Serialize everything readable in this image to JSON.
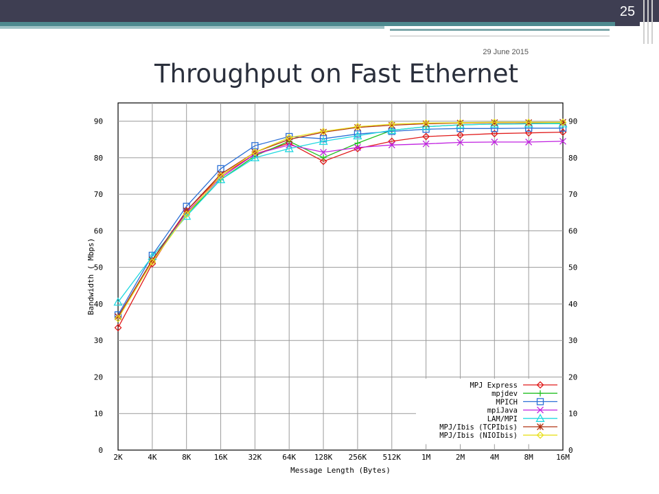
{
  "slide": {
    "page_number": "25",
    "date": "29 June 2015",
    "title": "Throughput on Fast Ethernet"
  },
  "chart_data": {
    "type": "line",
    "title": "",
    "xlabel": "Message Length (Bytes)",
    "ylabel": "Bandwidth ( Mbps)",
    "categories": [
      "2K",
      "4K",
      "8K",
      "16K",
      "32K",
      "64K",
      "128K",
      "256K",
      "512K",
      "1M",
      "2M",
      "4M",
      "8M",
      "16M"
    ],
    "ylim": [
      0,
      95
    ],
    "yticks": [
      0,
      10,
      20,
      30,
      40,
      50,
      60,
      70,
      80,
      90
    ],
    "grid": true,
    "legend_position": "bottom-right",
    "series": [
      {
        "name": "MPJ Express",
        "color": "#e01818",
        "marker": "diamond",
        "values": [
          33.5,
          51,
          65.5,
          75,
          81,
          84,
          79,
          82.5,
          84.5,
          85.8,
          86.2,
          86.6,
          86.8,
          87
        ]
      },
      {
        "name": "mpjdev",
        "color": "#20c020",
        "marker": "plus",
        "values": [
          36.5,
          52,
          64.5,
          74,
          80.5,
          84.5,
          80,
          84,
          87.5,
          88.5,
          89,
          89.2,
          89.3,
          89.4
        ]
      },
      {
        "name": "MPICH",
        "color": "#2a6fd6",
        "marker": "square",
        "values": [
          37,
          53.3,
          66.7,
          77,
          83.3,
          85.8,
          85.2,
          86.5,
          87.2,
          87.8,
          88,
          88,
          88.1,
          88.1
        ]
      },
      {
        "name": "mpiJava",
        "color": "#c020e0",
        "marker": "x",
        "values": [
          36.5,
          52,
          65,
          74.5,
          81,
          83.5,
          81.5,
          82.8,
          83.5,
          83.8,
          84.2,
          84.3,
          84.3,
          84.5
        ]
      },
      {
        "name": "LAM/MPI",
        "color": "#20d8e0",
        "marker": "triangle",
        "values": [
          40.5,
          53,
          64,
          74,
          80,
          82.5,
          84.5,
          86,
          87.5,
          88.5,
          89,
          89.2,
          89.3,
          89.3
        ]
      },
      {
        "name": "MPJ/Ibis (TCPIbis)",
        "color": "#b03010",
        "marker": "star",
        "values": [
          36.5,
          52,
          65.5,
          75.5,
          81.5,
          85,
          87,
          88.3,
          88.9,
          89.3,
          89.5,
          89.6,
          89.6,
          89.7
        ]
      },
      {
        "name": "MPJ/Ibis (NIOIbis)",
        "color": "#e8e020",
        "marker": "diamond",
        "values": [
          36,
          51.5,
          64.5,
          75,
          81.5,
          85.5,
          87.2,
          88.5,
          89.2,
          89.5,
          89.6,
          89.7,
          89.7,
          89.7
        ]
      }
    ]
  }
}
